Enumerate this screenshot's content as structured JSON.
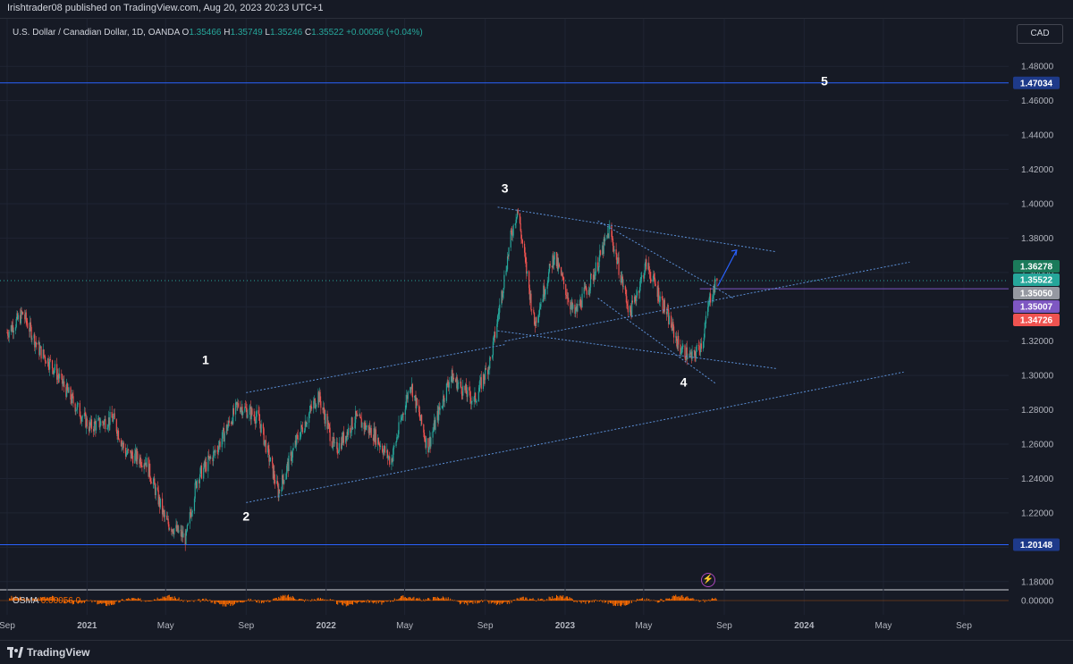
{
  "header": {
    "published": "Irishtrader08 published on TradingView.com, Aug 20, 2023 20:23 UTC+1"
  },
  "legend": {
    "symbol": "U.S. Dollar / Canadian Dollar, 1D, OANDA",
    "o_label": "O",
    "o": "1.35466",
    "h_label": "H",
    "h": "1.35749",
    "l_label": "L",
    "l": "1.35246",
    "c_label": "C",
    "c": "1.35522",
    "change": "+0.00056 (+0.04%)"
  },
  "currency_button": "CAD",
  "osma": {
    "label": "OSMA",
    "value": "0.00056",
    "extra": "0"
  },
  "footer": {
    "brand": "TradingView"
  },
  "colors": {
    "background": "#161a25",
    "up": "#26a69a",
    "down": "#ef5350",
    "trendline": "#5b8fd6",
    "level_line": "#2962ff",
    "osma": "#ff6d00"
  },
  "chart_data": {
    "type": "candlestick",
    "title": "U.S. Dollar / Canadian Dollar, 1D, OANDA",
    "y_axis": {
      "ticks": [
        "1.48000",
        "1.46000",
        "1.44000",
        "1.42000",
        "1.40000",
        "1.38000",
        "1.36000",
        "1.34000",
        "1.32000",
        "1.30000",
        "1.28000",
        "1.26000",
        "1.24000",
        "1.22000",
        "1.20000",
        "1.18000"
      ],
      "ylim": [
        1.17,
        1.49
      ]
    },
    "x_axis": {
      "ticks": [
        "Sep",
        "2021",
        "May",
        "Sep",
        "2022",
        "May",
        "Sep",
        "2023",
        "May",
        "Sep",
        "2024",
        "May",
        "Sep"
      ],
      "range": [
        "2020-09",
        "2024-10"
      ]
    },
    "price_labels": [
      {
        "value": "1.47034",
        "color": "#1e3a8a"
      },
      {
        "value": "1.36278",
        "color": "#1b7a5a"
      },
      {
        "value": "1.35522",
        "color": "#26a69a"
      },
      {
        "value": "1.35050",
        "color": "#9598a1"
      },
      {
        "value": "1.35007",
        "color": "#7e57c2"
      },
      {
        "value": "1.34726",
        "color": "#ef5350"
      },
      {
        "value": "1.20148",
        "color": "#1e3a8a"
      }
    ],
    "osma_axis_label": "0.00000",
    "horizontal_levels": [
      1.47034,
      1.3505,
      1.20148
    ],
    "wave_labels": [
      {
        "label": "1",
        "date": "2021-07",
        "price": 1.3065
      },
      {
        "label": "2",
        "date": "2021-09",
        "price": 1.2155
      },
      {
        "label": "3",
        "date": "2022-10",
        "price": 1.4065
      },
      {
        "label": "4",
        "date": "2023-07",
        "price": 1.2935
      },
      {
        "label": "5",
        "date": "2024-02",
        "price": 1.469
      }
    ],
    "price_path": [
      [
        "2020-09-01",
        1.325
      ],
      [
        "2020-09-25",
        1.336
      ],
      [
        "2020-10-20",
        1.315
      ],
      [
        "2020-11-10",
        1.305
      ],
      [
        "2020-12-10",
        1.285
      ],
      [
        "2021-01-05",
        1.27
      ],
      [
        "2021-02-10",
        1.275
      ],
      [
        "2021-03-01",
        1.255
      ],
      [
        "2021-04-01",
        1.25
      ],
      [
        "2021-05-01",
        1.215
      ],
      [
        "2021-06-01",
        1.205
      ],
      [
        "2021-06-18",
        1.24
      ],
      [
        "2021-07-15",
        1.255
      ],
      [
        "2021-08-20",
        1.283
      ],
      [
        "2021-09-20",
        1.275
      ],
      [
        "2021-10-20",
        1.232
      ],
      [
        "2021-11-20",
        1.265
      ],
      [
        "2021-12-20",
        1.289
      ],
      [
        "2022-01-15",
        1.256
      ],
      [
        "2022-02-15",
        1.275
      ],
      [
        "2022-03-15",
        1.266
      ],
      [
        "2022-04-10",
        1.25
      ],
      [
        "2022-05-10",
        1.296
      ],
      [
        "2022-06-05",
        1.258
      ],
      [
        "2022-07-10",
        1.3
      ],
      [
        "2022-08-15",
        1.285
      ],
      [
        "2022-09-10",
        1.31
      ],
      [
        "2022-10-10",
        1.38
      ],
      [
        "2022-10-20",
        1.397
      ],
      [
        "2022-11-15",
        1.33
      ],
      [
        "2022-12-15",
        1.37
      ],
      [
        "2023-01-15",
        1.335
      ],
      [
        "2023-02-15",
        1.36
      ],
      [
        "2023-03-10",
        1.385
      ],
      [
        "2023-04-10",
        1.336
      ],
      [
        "2023-05-05",
        1.365
      ],
      [
        "2023-06-01",
        1.34
      ],
      [
        "2023-06-25",
        1.316
      ],
      [
        "2023-07-14",
        1.31
      ],
      [
        "2023-07-30",
        1.32
      ],
      [
        "2023-08-10",
        1.345
      ],
      [
        "2023-08-21",
        1.355
      ]
    ],
    "trendlines": [
      {
        "from": [
          "2021-09-01",
          1.29
        ],
        "to": [
          "2022-10-01",
          1.318
        ]
      },
      {
        "from": [
          "2021-09-01",
          1.226
        ],
        "to": [
          "2024-06-01",
          1.302
        ]
      },
      {
        "from": [
          "2022-09-20",
          1.398
        ],
        "to": [
          "2023-11-20",
          1.372
        ]
      },
      {
        "from": [
          "2022-09-20",
          1.326
        ],
        "to": [
          "2023-11-20",
          1.304
        ]
      },
      {
        "from": [
          "2023-02-20",
          1.39
        ],
        "to": [
          "2023-09-15",
          1.345
        ]
      },
      {
        "from": [
          "2023-02-20",
          1.345
        ],
        "to": [
          "2023-08-20",
          1.295
        ]
      },
      {
        "from": [
          "2022-10-01",
          1.32
        ],
        "to": [
          "2024-06-10",
          1.366
        ]
      }
    ],
    "projection_arrow": {
      "from": [
        "2023-08-22",
        1.352
      ],
      "to": [
        "2023-09-20",
        1.373
      ]
    }
  }
}
